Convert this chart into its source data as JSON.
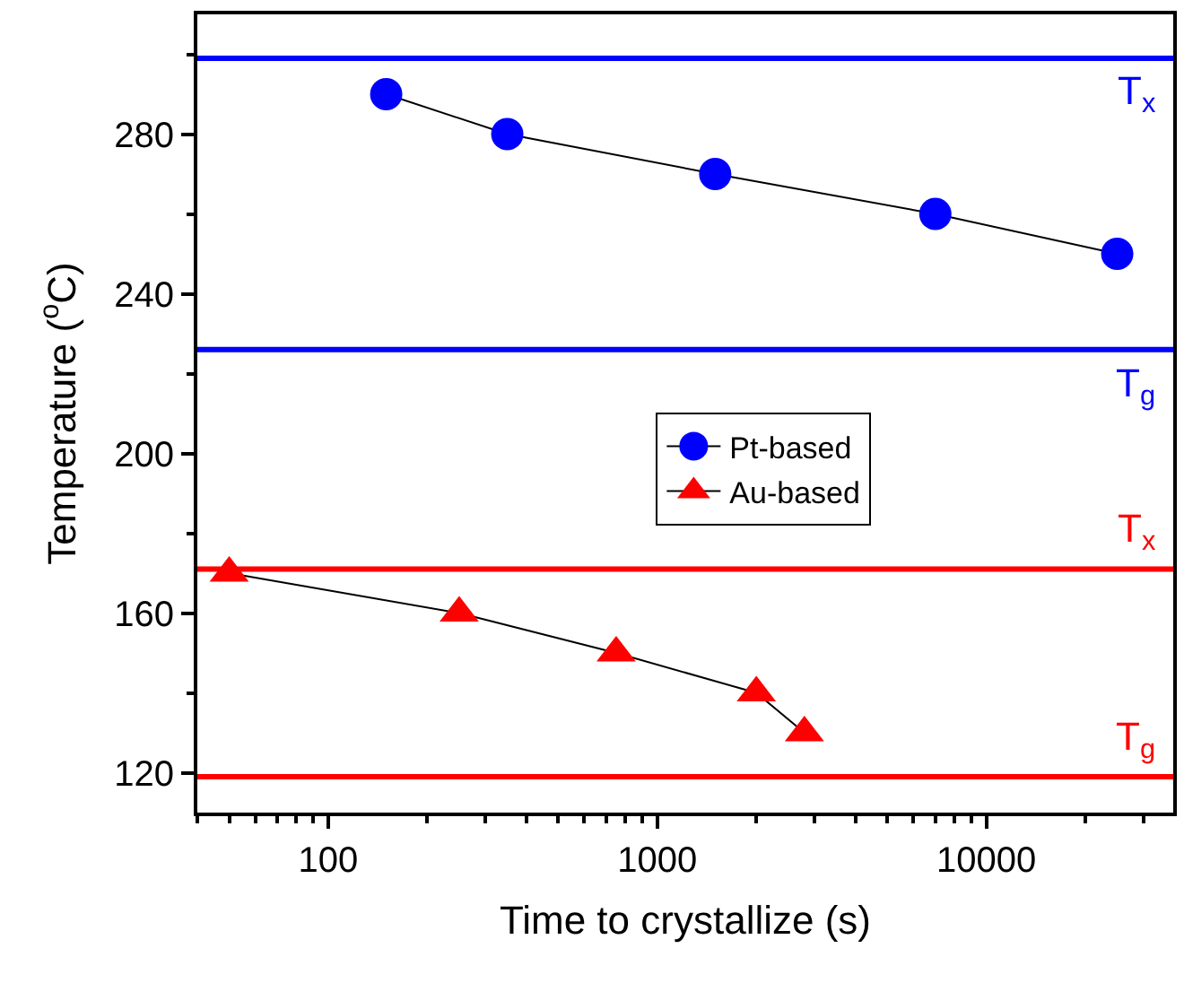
{
  "chart_data": {
    "type": "line",
    "xlabel": "Time to crystallize (s)",
    "ylabel": "Temperature ($^{o}$C)",
    "log": "x",
    "xlim": [
      40,
      37000
    ],
    "xticks": [
      100,
      1000,
      10000
    ],
    "ylim": [
      110,
      310
    ],
    "yticks": [
      120,
      160,
      200,
      240,
      280
    ],
    "legend": "center",
    "line_style": "solid",
    "series": [
      {
        "name": "Pt-based",
        "color": "#0000ff",
        "marker": "circle",
        "x": [
          150,
          350,
          1500,
          7000,
          25000
        ],
        "values": [
          290,
          280,
          270,
          260,
          250
        ]
      },
      {
        "name": "Au-based",
        "color": "#ff0000",
        "marker": "triangle",
        "x": [
          50,
          250,
          750,
          2000,
          2800
        ],
        "values": [
          170,
          160,
          150,
          140,
          130
        ]
      }
    ],
    "ref_lines": [
      {
        "axis": "y",
        "value": 299,
        "label": "T$_{x}$",
        "color": "#0000ff"
      },
      {
        "axis": "y",
        "value": 226,
        "label": "T$_{g}$",
        "color": "#0000ff"
      },
      {
        "axis": "y",
        "value": 171,
        "label": "T$_{x}$",
        "color": "#ff0000"
      },
      {
        "axis": "y",
        "value": 119,
        "label": "T$_{g}$",
        "color": "#ff0000"
      }
    ]
  }
}
